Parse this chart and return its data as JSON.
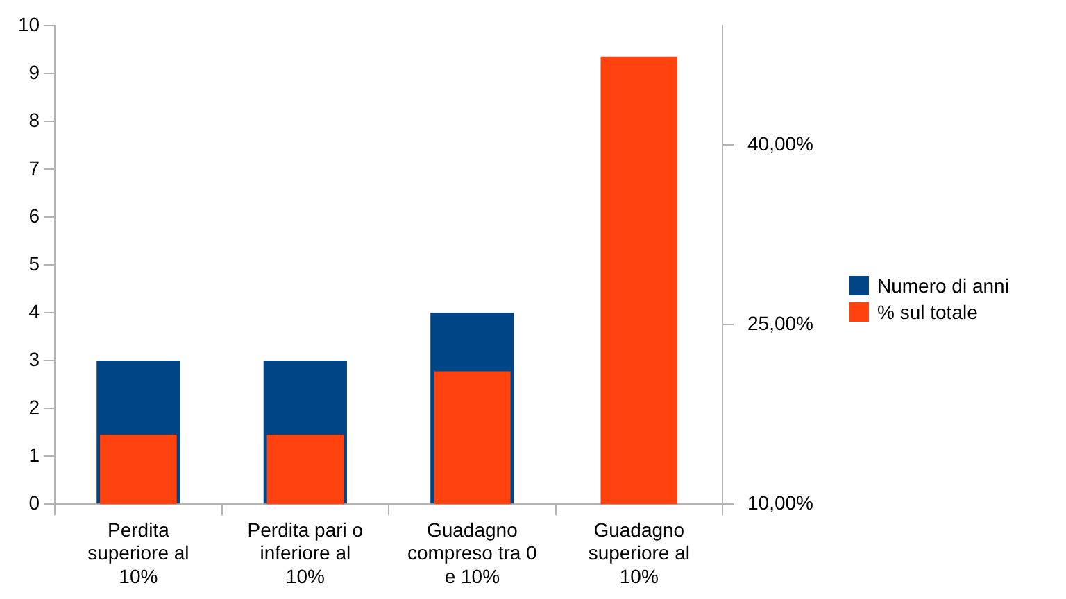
{
  "chart_data": {
    "type": "bar",
    "categories": [
      "Perdita superiore al 10%",
      "Perdita pari o inferiore al 10%",
      "Guadagno compreso tra 0 e 10%",
      "Guadagno superiore al 10%"
    ],
    "series": [
      {
        "name": "Numero di anni",
        "color": "#004586",
        "values": [
          3,
          3,
          4,
          null
        ]
      },
      {
        "name": "% sul totale",
        "color": "#ff420e",
        "values": [
          15.8,
          15.8,
          21.1,
          47.4
        ],
        "axis": "y2"
      }
    ],
    "ylim": [
      0,
      10
    ],
    "yticks": [
      0,
      1,
      2,
      3,
      4,
      5,
      6,
      7,
      8,
      9,
      10
    ],
    "y2lim": [
      10,
      50
    ],
    "y2ticks": [
      {
        "value": 10,
        "label": "10,00%"
      },
      {
        "value": 25,
        "label": "25,00%"
      },
      {
        "value": 40,
        "label": "40,00%"
      }
    ],
    "grid": false,
    "legend": "right"
  }
}
